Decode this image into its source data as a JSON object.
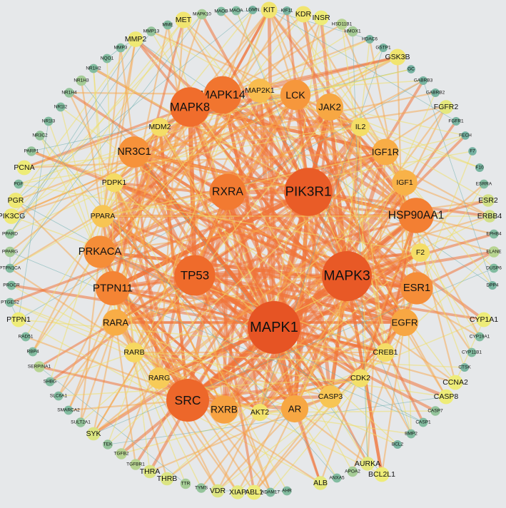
{
  "nodes": [
    {
      "label": "MAPK1",
      "deg": 1.0
    },
    {
      "label": "MAPK3",
      "deg": 0.95
    },
    {
      "label": "PIK3R1",
      "deg": 0.92
    },
    {
      "label": "SRC",
      "deg": 0.82
    },
    {
      "label": "TP53",
      "deg": 0.78
    },
    {
      "label": "MAPK8",
      "deg": 0.76
    },
    {
      "label": "MAPK14",
      "deg": 0.72
    },
    {
      "label": "RXRA",
      "deg": 0.7
    },
    {
      "label": "HSP90AA1",
      "deg": 0.68
    },
    {
      "label": "PTPN11",
      "deg": 0.66
    },
    {
      "label": "ESR1",
      "deg": 0.62
    },
    {
      "label": "PRKACA",
      "deg": 0.62
    },
    {
      "label": "NR3C1",
      "deg": 0.6
    },
    {
      "label": "LCK",
      "deg": 0.58
    },
    {
      "label": "IGF1R",
      "deg": 0.5
    },
    {
      "label": "JAK2",
      "deg": 0.52
    },
    {
      "label": "EGFR",
      "deg": 0.52
    },
    {
      "label": "RXRB",
      "deg": 0.54
    },
    {
      "label": "AR",
      "deg": 0.52
    },
    {
      "label": "RARA",
      "deg": 0.5
    },
    {
      "label": "IGF1",
      "deg": 0.48
    },
    {
      "label": "MAP2K1",
      "deg": 0.45
    },
    {
      "label": "PPARA",
      "deg": 0.42
    },
    {
      "label": "CASP3",
      "deg": 0.42
    },
    {
      "label": "RARG",
      "deg": 0.4
    },
    {
      "label": "RARB",
      "deg": 0.36
    },
    {
      "label": "PDPK1",
      "deg": 0.34
    },
    {
      "label": "MDM2",
      "deg": 0.33
    },
    {
      "label": "IL2",
      "deg": 0.33
    },
    {
      "label": "F2",
      "deg": 0.33
    },
    {
      "label": "CREB1",
      "deg": 0.33
    },
    {
      "label": "CDK2",
      "deg": 0.32
    },
    {
      "label": "AKT2",
      "deg": 0.3
    },
    {
      "label": "KIT",
      "deg": 0.28
    },
    {
      "label": "KDR",
      "deg": 0.28
    },
    {
      "label": "MET",
      "deg": 0.28
    },
    {
      "label": "INSR",
      "deg": 0.24
    },
    {
      "label": "GSK3B",
      "deg": 0.28
    },
    {
      "label": "MMP2",
      "deg": 0.26
    },
    {
      "label": "FGFR2",
      "deg": 0.22
    },
    {
      "label": "PCNA",
      "deg": 0.24
    },
    {
      "label": "PGR",
      "deg": 0.26
    },
    {
      "label": "PIK3CG",
      "deg": 0.26
    },
    {
      "label": "CYP1A1",
      "deg": 0.24
    },
    {
      "label": "CCNA2",
      "deg": 0.24
    },
    {
      "label": "CASP8",
      "deg": 0.24
    },
    {
      "label": "PTPN1",
      "deg": 0.24
    },
    {
      "label": "BCL2L1",
      "deg": 0.24
    },
    {
      "label": "AURKA",
      "deg": 0.22
    },
    {
      "label": "ALB",
      "deg": 0.22
    },
    {
      "label": "ABL1",
      "deg": 0.24
    },
    {
      "label": "XIAP",
      "deg": 0.22
    },
    {
      "label": "VDR",
      "deg": 0.2
    },
    {
      "label": "THRB",
      "deg": 0.2
    },
    {
      "label": "THRA",
      "deg": 0.2
    },
    {
      "label": "SYK",
      "deg": 0.2
    },
    {
      "label": "ESR2",
      "deg": 0.18
    },
    {
      "label": "ERBB4",
      "deg": 0.18
    },
    {
      "label": "ELANE",
      "deg": 0.14
    },
    {
      "label": "SERPINA1",
      "deg": 0.14
    },
    {
      "label": "TGFB2",
      "deg": 0.14
    },
    {
      "label": "TGFBR1",
      "deg": 0.14
    },
    {
      "label": "TTR",
      "deg": 0.12
    },
    {
      "label": "TYMS",
      "deg": 0.1
    },
    {
      "label": "APOA2",
      "deg": 0.12
    },
    {
      "label": "CASP7",
      "deg": 0.1
    },
    {
      "label": "HSD11B1",
      "deg": 0.14
    },
    {
      "label": "HMOX1",
      "deg": 0.12
    },
    {
      "label": "NR1H3",
      "deg": 0.12
    },
    {
      "label": "NR1H4",
      "deg": 0.1
    },
    {
      "label": "NR1I2",
      "deg": 0.08
    },
    {
      "label": "NR1I3",
      "deg": 0.08
    },
    {
      "label": "NR1H2",
      "deg": 0.08
    },
    {
      "label": "NR3C2",
      "deg": 0.1
    },
    {
      "label": "PARP1",
      "deg": 0.1
    },
    {
      "label": "PPARD",
      "deg": 0.1
    },
    {
      "label": "PPARG",
      "deg": 0.12
    },
    {
      "label": "PTPN1CA",
      "deg": 0.08
    },
    {
      "label": "PROCR",
      "deg": 0.08
    },
    {
      "label": "RAD51",
      "deg": 0.08
    },
    {
      "label": "RBP4",
      "deg": 0.08
    },
    {
      "label": "SHBG",
      "deg": 0.08
    },
    {
      "label": "SLC6A1",
      "deg": 0.08
    },
    {
      "label": "SMARCA2",
      "deg": 0.08
    },
    {
      "label": "SULT2A1",
      "deg": 0.1
    },
    {
      "label": "TEK",
      "deg": 0.1
    },
    {
      "label": "PTGES2",
      "deg": 0.08
    },
    {
      "label": "PGF",
      "deg": 0.08
    },
    {
      "label": "MAPK10",
      "deg": 0.12
    },
    {
      "label": "MAOB",
      "deg": 0.08
    },
    {
      "label": "MAOA",
      "deg": 0.08
    },
    {
      "label": "LGMN",
      "deg": 0.06
    },
    {
      "label": "KIF11",
      "deg": 0.06
    },
    {
      "label": "MME",
      "deg": 0.08
    },
    {
      "label": "MMP13",
      "deg": 0.1
    },
    {
      "label": "MMP3",
      "deg": 0.08
    },
    {
      "label": "NQO1",
      "deg": 0.08
    },
    {
      "label": "HDAC6",
      "deg": 0.06
    },
    {
      "label": "GSTP1",
      "deg": 0.06
    },
    {
      "label": "GC",
      "deg": 0.05
    },
    {
      "label": "GABRB3",
      "deg": 0.06
    },
    {
      "label": "GABRB2",
      "deg": 0.06
    },
    {
      "label": "FGFR1",
      "deg": 0.06
    },
    {
      "label": "FECH",
      "deg": 0.05
    },
    {
      "label": "F7",
      "deg": 0.05
    },
    {
      "label": "F10",
      "deg": 0.06
    },
    {
      "label": "ESRRA",
      "deg": 0.08
    },
    {
      "label": "EPHB4",
      "deg": 0.08
    },
    {
      "label": "DUSP6",
      "deg": 0.08
    },
    {
      "label": "DPP4",
      "deg": 0.06
    },
    {
      "label": "CYP19A1",
      "deg": 0.08
    },
    {
      "label": "CYP11B1",
      "deg": 0.08
    },
    {
      "label": "CTSK",
      "deg": 0.06
    },
    {
      "label": "CASP1",
      "deg": 0.08
    },
    {
      "label": "BMP2",
      "deg": 0.08
    },
    {
      "label": "BCL2",
      "deg": 0.06
    },
    {
      "label": "ANXA5",
      "deg": 0.08
    },
    {
      "label": "AHR",
      "deg": 0.08
    },
    {
      "label": "ADAM17",
      "deg": 0.08
    }
  ]
}
